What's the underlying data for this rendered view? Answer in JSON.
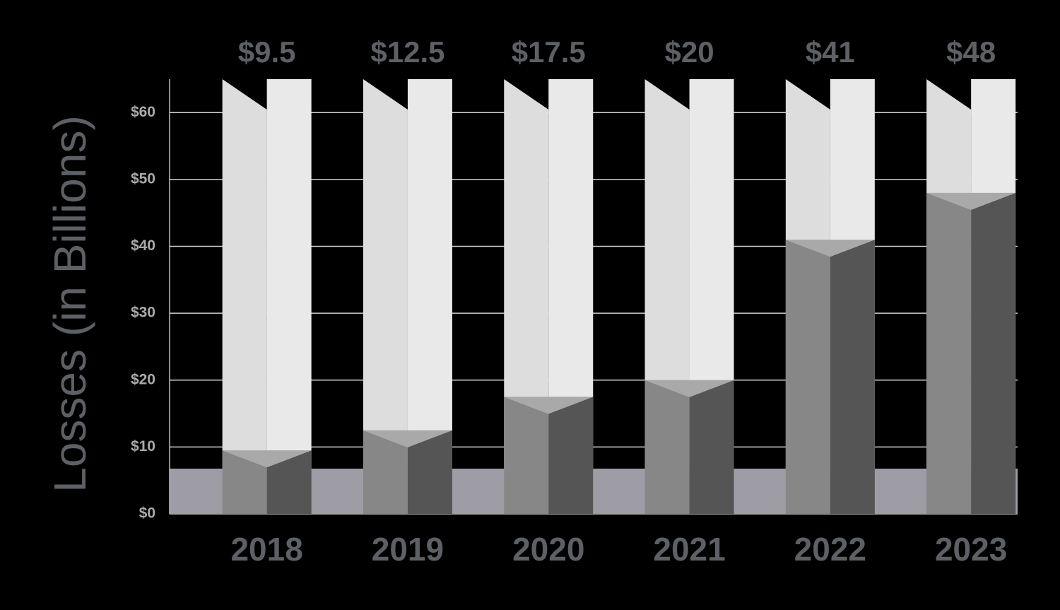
{
  "chart_data": {
    "type": "bar",
    "y_axis_label": "Losses (in Billions)",
    "categories": [
      "2018",
      "2019",
      "2020",
      "2021",
      "2022",
      "2023"
    ],
    "values": [
      9.5,
      12.5,
      17.5,
      20,
      41,
      48
    ],
    "value_labels": [
      "$9.5",
      "$12.5",
      "$17.5",
      "$20",
      "$41",
      "$48"
    ],
    "color": "#878787",
    "ylim": [
      0,
      65
    ],
    "yticks": [
      {
        "value": 0,
        "label": "$0"
      },
      {
        "value": 10,
        "label": "$10"
      },
      {
        "value": 20,
        "label": "$20"
      },
      {
        "value": 30,
        "label": "$30"
      },
      {
        "value": 40,
        "label": "$40"
      },
      {
        "value": 50,
        "label": "$50"
      },
      {
        "value": 60,
        "label": "$60"
      }
    ],
    "grid": true
  }
}
